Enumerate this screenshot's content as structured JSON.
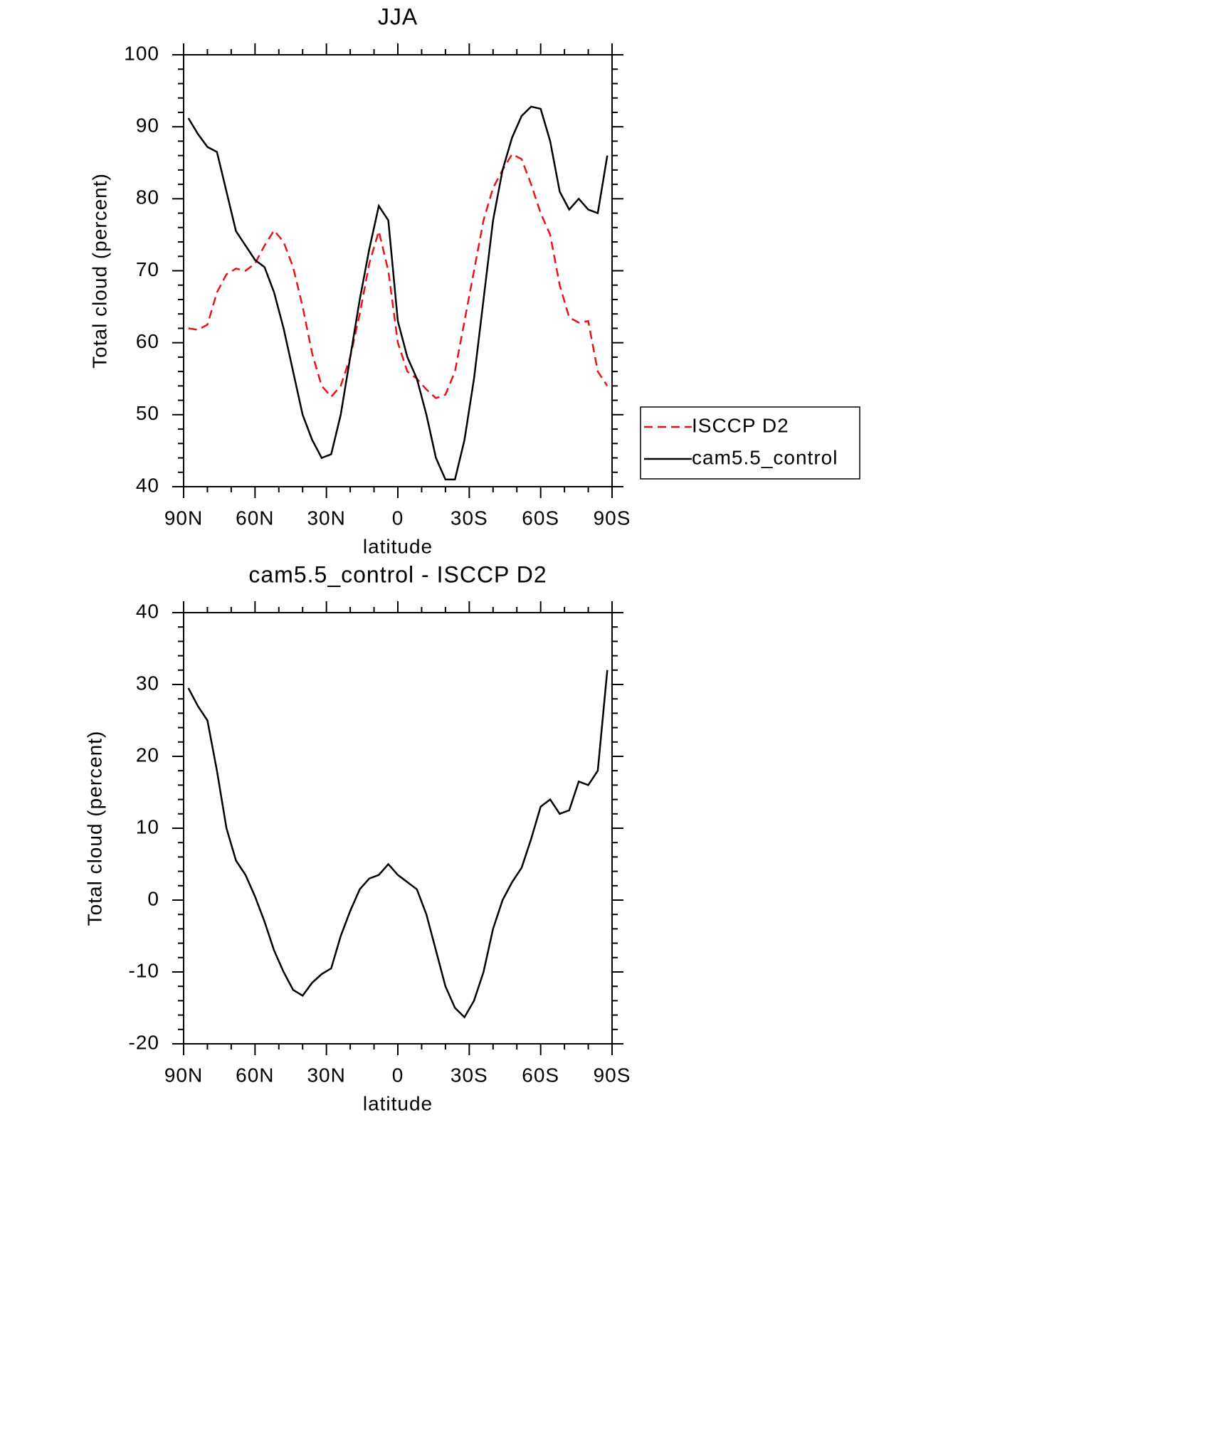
{
  "chart_data": [
    {
      "type": "line",
      "title": "JJA",
      "xlabel": "latitude",
      "ylabel": "Total cloud (percent)",
      "x": [
        88,
        84,
        80,
        76,
        72,
        68,
        64,
        60,
        56,
        52,
        48,
        44,
        40,
        36,
        32,
        28,
        24,
        20,
        16,
        12,
        8,
        4,
        0,
        -4,
        -8,
        -12,
        -16,
        -20,
        -24,
        -28,
        -32,
        -36,
        -40,
        -44,
        -48,
        -52,
        -56,
        -60,
        -64,
        -68,
        -72,
        -76,
        -80,
        -84,
        -88
      ],
      "series": [
        {
          "name": "ISCCP D2",
          "color": "#e8141a",
          "dashed": true,
          "values": [
            62,
            61.8,
            62.5,
            67,
            69.5,
            70.3,
            70,
            71,
            73.5,
            75.6,
            74,
            70.5,
            65,
            58.5,
            54,
            52.5,
            54,
            58,
            64,
            71,
            75.5,
            70,
            60,
            56,
            55,
            53.5,
            52.3,
            52.8,
            56,
            63,
            70,
            77,
            81.5,
            84,
            86.2,
            85.5,
            82,
            78,
            75,
            68,
            63.5,
            62.8,
            63,
            56,
            54
          ]
        },
        {
          "name": "cam5.5_control",
          "color": "#000000",
          "dashed": false,
          "values": [
            91.2,
            89,
            87.2,
            86.5,
            81,
            75.5,
            73.5,
            71.5,
            70.5,
            67,
            62,
            56,
            50,
            46.5,
            44,
            44.5,
            50,
            58,
            66,
            73,
            79,
            77,
            63,
            58,
            55,
            50,
            44,
            41,
            41,
            46.5,
            55,
            66,
            77,
            84,
            88.5,
            91.5,
            92.8,
            92.5,
            88,
            81,
            78.5,
            80,
            78.5,
            78,
            86
          ]
        }
      ],
      "xlim": [
        90,
        -90
      ],
      "xticks": [
        {
          "value": 90,
          "label": "90N"
        },
        {
          "value": 60,
          "label": "60N"
        },
        {
          "value": 30,
          "label": "30N"
        },
        0,
        {
          "value": -30,
          "label": "30S"
        },
        {
          "value": -60,
          "label": "60S"
        },
        {
          "value": -90,
          "label": "90S"
        }
      ],
      "xminorticks": [
        80,
        70,
        50,
        40,
        20,
        10,
        -10,
        -20,
        -40,
        -50,
        -70,
        -80
      ],
      "ylim": [
        40,
        100
      ],
      "yticks": [
        40,
        50,
        60,
        70,
        80,
        90,
        100
      ],
      "yminorticks": [
        42,
        44,
        46,
        48,
        52,
        54,
        56,
        58,
        62,
        64,
        66,
        68,
        72,
        74,
        76,
        78,
        82,
        84,
        86,
        88,
        92,
        94,
        96,
        98
      ],
      "legend": "right"
    },
    {
      "type": "line",
      "title": "cam5.5_control - ISCCP D2",
      "xlabel": "latitude",
      "ylabel": "Total cloud (percent)",
      "x": [
        88,
        84,
        80,
        76,
        72,
        68,
        64,
        60,
        56,
        52,
        48,
        44,
        40,
        36,
        32,
        28,
        24,
        20,
        16,
        12,
        8,
        4,
        0,
        -4,
        -8,
        -12,
        -16,
        -20,
        -24,
        -28,
        -32,
        -36,
        -40,
        -44,
        -48,
        -52,
        -56,
        -60,
        -64,
        -68,
        -72,
        -76,
        -80,
        -84,
        -88
      ],
      "color": "#000000",
      "values": [
        29.5,
        27,
        25,
        18,
        10,
        5.5,
        3.5,
        0.5,
        -3,
        -7,
        -10,
        -12.5,
        -13.3,
        -11.5,
        -10.3,
        -9.5,
        -5,
        -1.5,
        1.5,
        3,
        3.5,
        5,
        3.5,
        2.5,
        1.5,
        -2,
        -7,
        -12,
        -15,
        -16.3,
        -14,
        -10,
        -4,
        0,
        2.5,
        4.5,
        8.5,
        13,
        14,
        12,
        12.5,
        16.5,
        16,
        18,
        32
      ],
      "xlim": [
        90,
        -90
      ],
      "xticks": [
        {
          "value": 90,
          "label": "90N"
        },
        {
          "value": 60,
          "label": "60N"
        },
        {
          "value": 30,
          "label": "30N"
        },
        0,
        {
          "value": -30,
          "label": "30S"
        },
        {
          "value": -60,
          "label": "60S"
        },
        {
          "value": -90,
          "label": "90S"
        }
      ],
      "xminorticks": [
        80,
        70,
        50,
        40,
        20,
        10,
        -10,
        -20,
        -40,
        -50,
        -70,
        -80
      ],
      "ylim": [
        -20,
        40
      ],
      "yticks": [
        -20,
        -10,
        0,
        10,
        20,
        30,
        40
      ],
      "yminorticks": [
        -18,
        -16,
        -14,
        -12,
        -8,
        -6,
        -4,
        -2,
        2,
        4,
        6,
        8,
        12,
        14,
        16,
        18,
        22,
        24,
        26,
        28,
        32,
        34,
        36,
        38
      ]
    }
  ]
}
